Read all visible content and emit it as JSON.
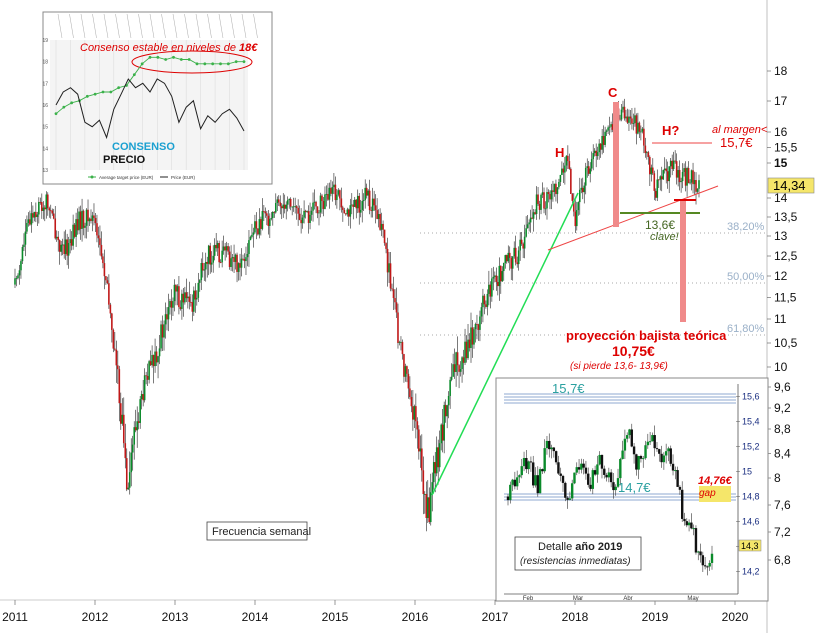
{
  "chart_data": [
    {
      "type": "line",
      "title": "",
      "xlabel": "",
      "ylabel": "",
      "frequency_label": "Frecuencia semanal",
      "x_ticks": [
        "2011",
        "2012",
        "2013",
        "2014",
        "2015",
        "2016",
        "2017",
        "2018",
        "2019",
        "2020"
      ],
      "x_range": [
        2011,
        2020
      ],
      "y_ticks": [
        "18",
        "17",
        "16",
        "15,5",
        "15",
        "14",
        "13,5",
        "13",
        "12,5",
        "12",
        "11,5",
        "11",
        "10,5",
        "10",
        "9,6",
        "9,2",
        "8,8",
        "8,4",
        "8",
        "7,6",
        "7,2",
        "6,8"
      ],
      "y_range": [
        6.6,
        18.2
      ],
      "current_price_label": "14,34",
      "current_price": 14.34,
      "grid": false,
      "series": [
        {
          "values_x": [
            2011.0,
            2011.2,
            2011.4,
            2011.6,
            2011.8,
            2012.0,
            2012.2,
            2012.4,
            2012.6,
            2012.8,
            2013.0,
            2013.2,
            2013.4,
            2013.6,
            2013.8,
            2014.0,
            2014.2,
            2014.4,
            2014.6,
            2014.8,
            2015.0,
            2015.2,
            2015.4,
            2015.6,
            2015.8,
            2016.0,
            2016.15,
            2016.3,
            2016.5,
            2016.7,
            2016.9,
            2017.1,
            2017.3,
            2017.5,
            2017.7,
            2017.9,
            2018.0,
            2018.2,
            2018.4,
            2018.55,
            2018.7,
            2018.85,
            2019.0,
            2019.2,
            2019.35,
            2019.45,
            2019.55
          ],
          "values": [
            11.8,
            13.6,
            13.9,
            12.5,
            13.4,
            13.5,
            11.0,
            8.0,
            9.5,
            10.5,
            11.6,
            11.3,
            12.5,
            12.6,
            12.3,
            13.2,
            13.6,
            14.0,
            13.4,
            13.8,
            14.2,
            13.6,
            14.1,
            13.1,
            10.5,
            9.0,
            7.4,
            8.5,
            10.0,
            10.6,
            11.5,
            12.2,
            12.6,
            13.8,
            14.1,
            15.0,
            13.5,
            15.2,
            16.0,
            16.6,
            16.5,
            15.8,
            14.2,
            14.9,
            14.6,
            14.6,
            14.34
          ]
        }
      ],
      "annotations": {
        "head_shoulders_labels": [
          "H",
          "C",
          "H?"
        ],
        "margin_label": "al margen<",
        "resistance_level": "15,7€",
        "neckline_support": "13,6€",
        "neckline_note": "clave!",
        "fib_levels": [
          "38,20%",
          "50,00%",
          "61,80%"
        ],
        "projection_title": "proyección bajista teórica",
        "projection_value": "10,75€",
        "projection_condition": "(si pierde 13,6- 13,9€)"
      }
    },
    {
      "type": "line",
      "title": "Consenso estable en niveles de 18€",
      "title_prefix": "Consenso estable en niveles de ",
      "title_value": "18€",
      "label_consenso": "CONSENSO",
      "label_precio": "PRECIO",
      "legend": [
        "Average target price (EUR)",
        "Price (EUR)"
      ],
      "y_ticks": [
        "19",
        "18",
        "17",
        "16",
        "15",
        "14",
        "13"
      ],
      "y_range": [
        13,
        19
      ],
      "series": [
        {
          "name": "Average target price (EUR)",
          "color": "#3bb14a",
          "values": [
            15.6,
            15.9,
            16.1,
            16.2,
            16.4,
            16.5,
            16.6,
            16.6,
            16.8,
            16.9,
            17.4,
            17.9,
            18.2,
            18.2,
            18.1,
            18.2,
            18.1,
            18.1,
            17.9,
            17.9,
            17.9,
            17.9,
            17.9,
            18.0,
            18.0
          ]
        },
        {
          "name": "Price (EUR)",
          "color": "#202020",
          "values": [
            16.0,
            16.6,
            16.8,
            16.5,
            15.2,
            15.0,
            15.3,
            14.5,
            15.8,
            16.5,
            17.2,
            16.8,
            17.0,
            16.6,
            17.2,
            17.0,
            16.4,
            15.2,
            15.9,
            16.2,
            14.9,
            15.5,
            15.2,
            15.6,
            15.8,
            15.4,
            14.8
          ]
        }
      ]
    },
    {
      "type": "line",
      "title": "Detalle año 2019",
      "title_prefix": "Detalle ",
      "title_bold": "año 2019",
      "subtitle": "(resistencias inmediatas)",
      "x_ticks": [
        "Feb",
        "Mar",
        "Abr",
        "May"
      ],
      "y_ticks": [
        "15,6",
        "15,4",
        "15,2",
        "15",
        "14,8",
        "14,6",
        "14,4",
        "14,2"
      ],
      "y_range": [
        14.1,
        15.7
      ],
      "current_price_label": "14,3",
      "resistance_label": "15,7€",
      "support_label": "14,7€",
      "gap_value": "14,76€",
      "gap_label": "gap",
      "series": [
        {
          "values": [
            14.8,
            14.9,
            15.1,
            15.0,
            14.9,
            15.2,
            15.1,
            14.9,
            14.8,
            15.0,
            15.0,
            14.9,
            15.1,
            15.0,
            14.8,
            15.2,
            15.4,
            15.0,
            15.2,
            15.3,
            15.1,
            15.2,
            15.0,
            14.7,
            14.6,
            14.4,
            14.3,
            14.3
          ]
        }
      ]
    }
  ]
}
